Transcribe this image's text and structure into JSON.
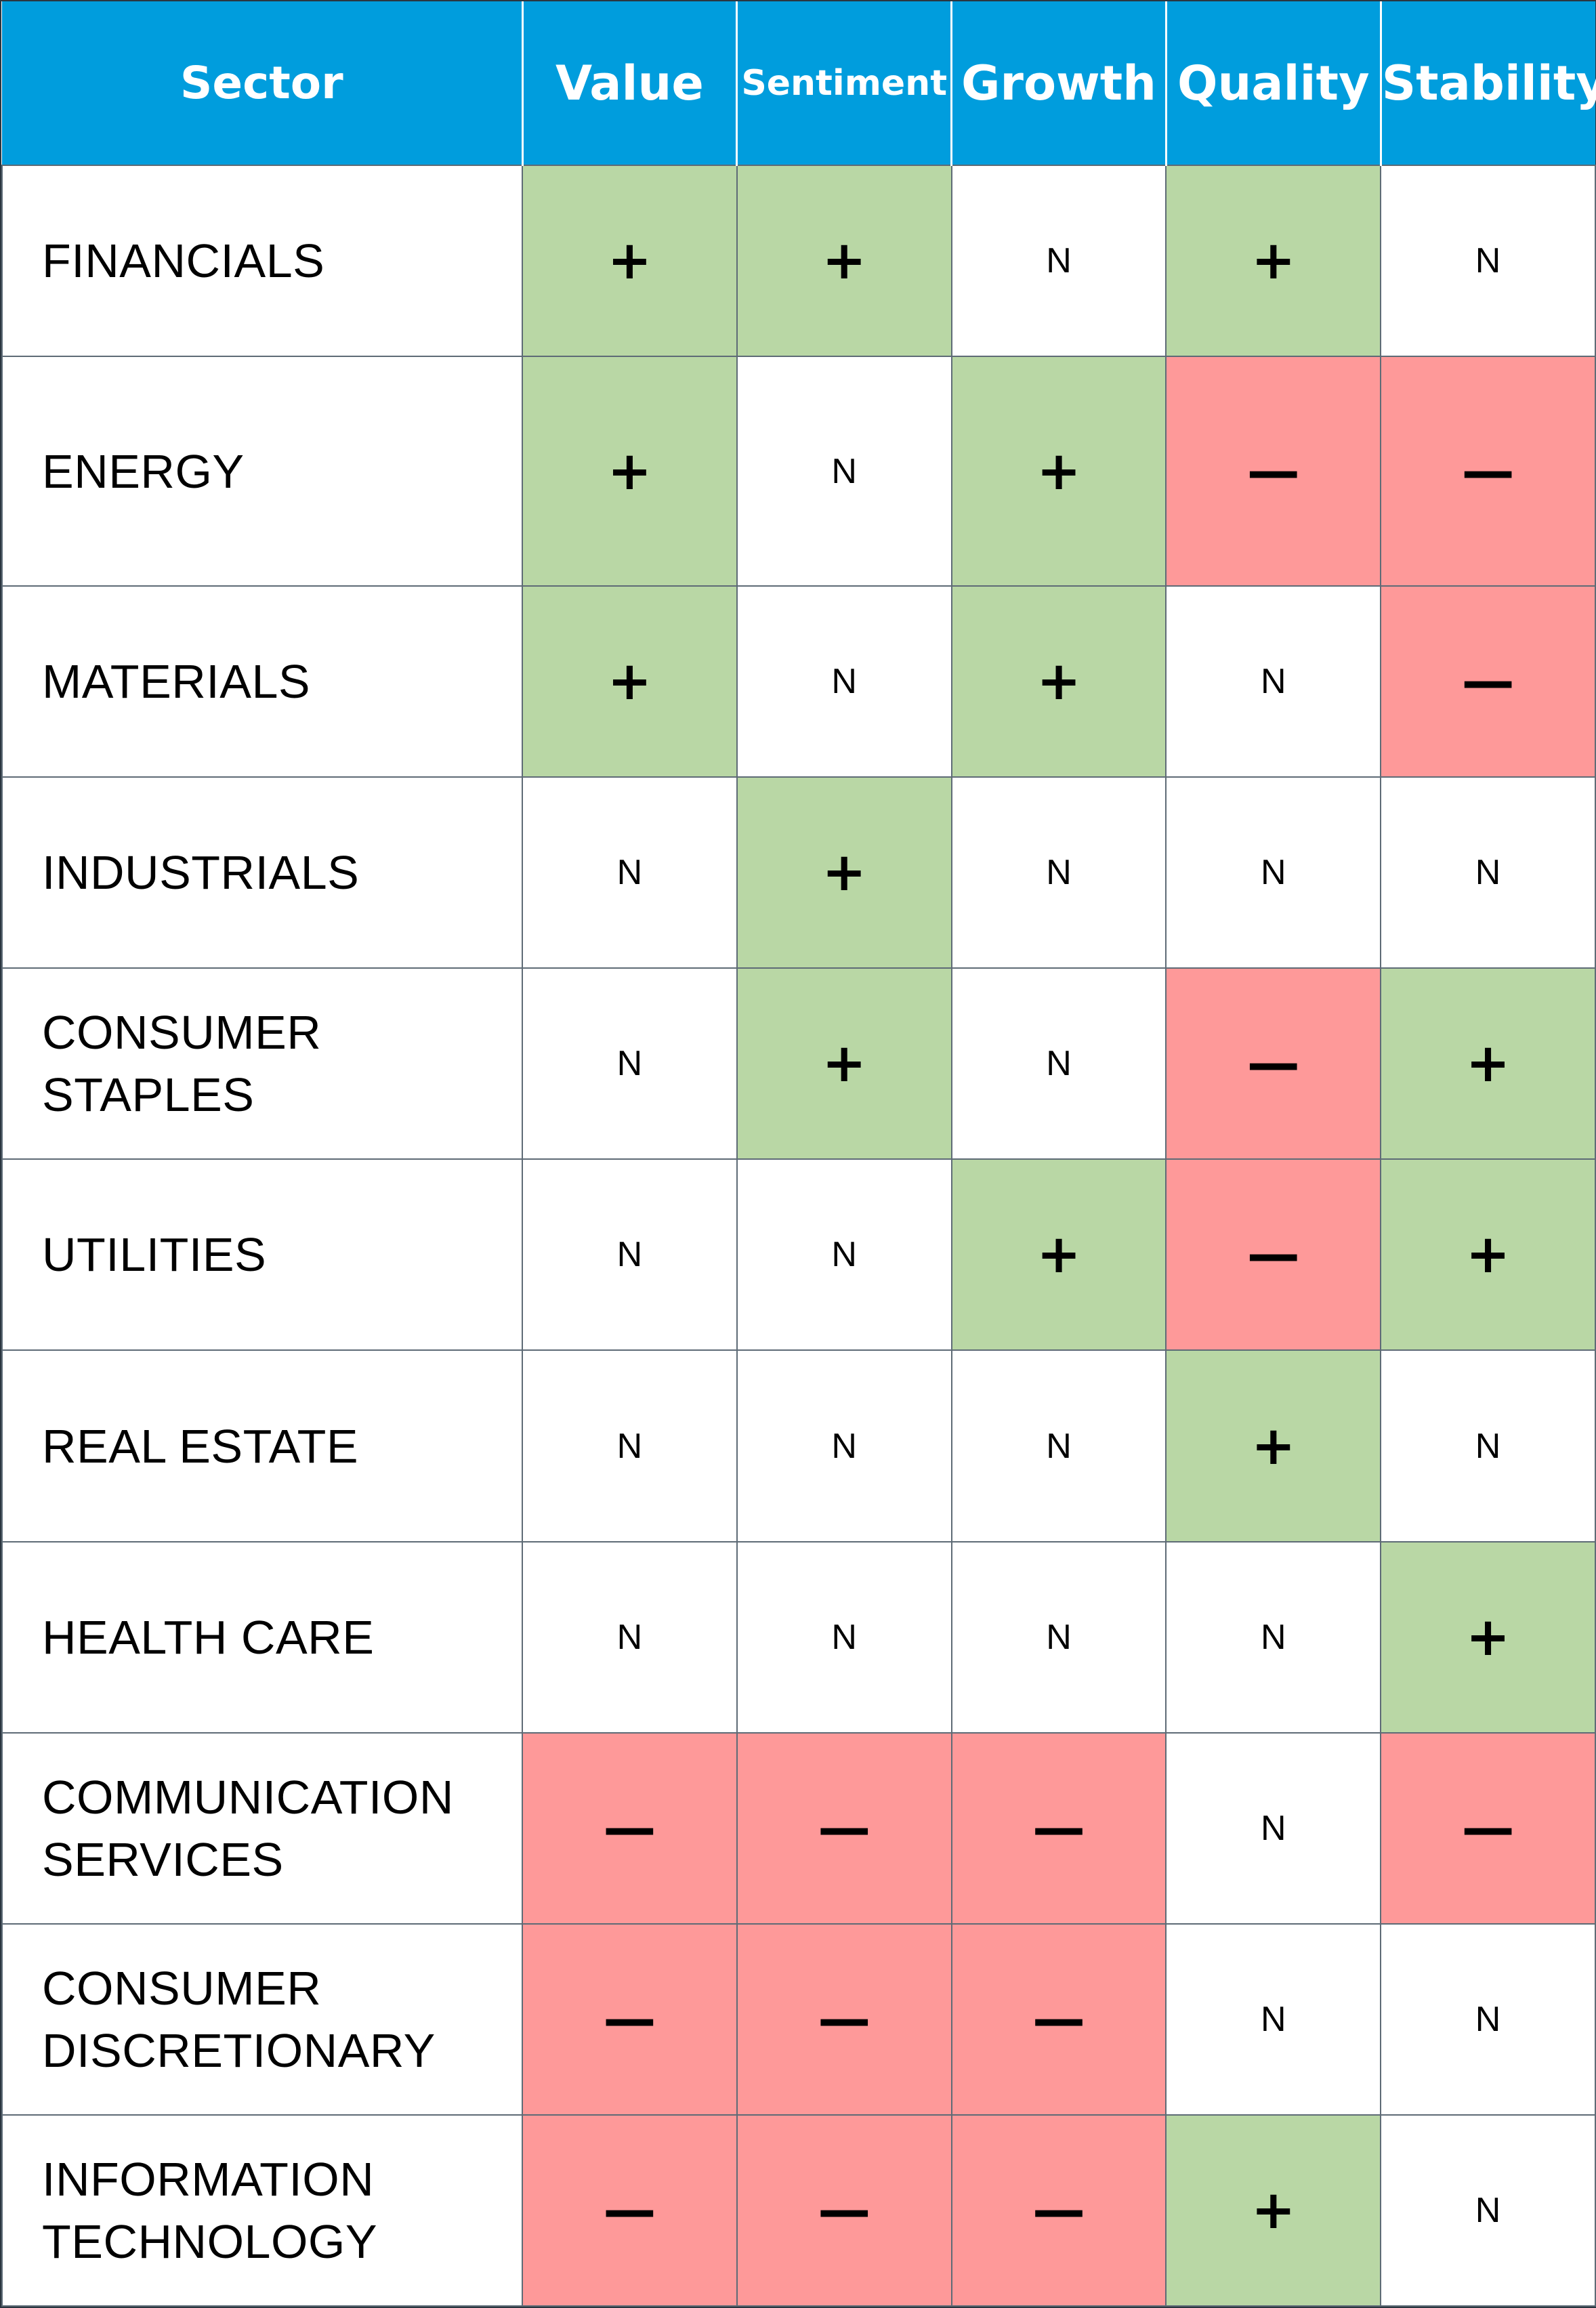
{
  "table": {
    "headers": [
      "Sector",
      "Value",
      "Sentiment",
      "Growth",
      "Quality",
      "Stability"
    ],
    "rows": [
      {
        "sector": [
          "FINANCIALS"
        ],
        "cells": [
          {
            "symbol": "+",
            "rating": "positive"
          },
          {
            "symbol": "+",
            "rating": "positive"
          },
          {
            "symbol": "N",
            "rating": "neutral"
          },
          {
            "symbol": "+",
            "rating": "positive"
          },
          {
            "symbol": "N",
            "rating": "neutral"
          }
        ]
      },
      {
        "sector": [
          "ENERGY"
        ],
        "cells": [
          {
            "symbol": "+",
            "rating": "positive"
          },
          {
            "symbol": "N",
            "rating": "neutral"
          },
          {
            "symbol": "+",
            "rating": "positive"
          },
          {
            "symbol": "—",
            "rating": "negative"
          },
          {
            "symbol": "—",
            "rating": "negative"
          }
        ]
      },
      {
        "sector": [
          "MATERIALS"
        ],
        "cells": [
          {
            "symbol": "+",
            "rating": "positive"
          },
          {
            "symbol": "N",
            "rating": "neutral"
          },
          {
            "symbol": "+",
            "rating": "positive"
          },
          {
            "symbol": "N",
            "rating": "neutral"
          },
          {
            "symbol": "—",
            "rating": "negative"
          }
        ]
      },
      {
        "sector": [
          "INDUSTRIALS"
        ],
        "cells": [
          {
            "symbol": "N",
            "rating": "neutral"
          },
          {
            "symbol": "+",
            "rating": "positive"
          },
          {
            "symbol": "N",
            "rating": "neutral"
          },
          {
            "symbol": "N",
            "rating": "neutral"
          },
          {
            "symbol": "N",
            "rating": "neutral"
          }
        ]
      },
      {
        "sector": [
          "CONSUMER",
          "STAPLES"
        ],
        "cells": [
          {
            "symbol": "N",
            "rating": "neutral"
          },
          {
            "symbol": "+",
            "rating": "positive"
          },
          {
            "symbol": "N",
            "rating": "neutral"
          },
          {
            "symbol": "—",
            "rating": "negative"
          },
          {
            "symbol": "+",
            "rating": "positive"
          }
        ]
      },
      {
        "sector": [
          "UTILITIES"
        ],
        "cells": [
          {
            "symbol": "N",
            "rating": "neutral"
          },
          {
            "symbol": "N",
            "rating": "neutral"
          },
          {
            "symbol": "+",
            "rating": "positive"
          },
          {
            "symbol": "—",
            "rating": "negative"
          },
          {
            "symbol": "+",
            "rating": "positive"
          }
        ]
      },
      {
        "sector": [
          "REAL ESTATE"
        ],
        "cells": [
          {
            "symbol": "N",
            "rating": "neutral"
          },
          {
            "symbol": "N",
            "rating": "neutral"
          },
          {
            "symbol": "N",
            "rating": "neutral"
          },
          {
            "symbol": "+",
            "rating": "positive"
          },
          {
            "symbol": "N",
            "rating": "neutral"
          }
        ]
      },
      {
        "sector": [
          "HEALTH CARE"
        ],
        "cells": [
          {
            "symbol": "N",
            "rating": "neutral"
          },
          {
            "symbol": "N",
            "rating": "neutral"
          },
          {
            "symbol": "N",
            "rating": "neutral"
          },
          {
            "symbol": "N",
            "rating": "neutral"
          },
          {
            "symbol": "+",
            "rating": "positive"
          }
        ]
      },
      {
        "sector": [
          "COMMUNICATION",
          "SERVICES"
        ],
        "cells": [
          {
            "symbol": "—",
            "rating": "negative"
          },
          {
            "symbol": "—",
            "rating": "negative"
          },
          {
            "symbol": "—",
            "rating": "negative"
          },
          {
            "symbol": "N",
            "rating": "neutral"
          },
          {
            "symbol": "—",
            "rating": "negative"
          }
        ]
      },
      {
        "sector": [
          "CONSUMER",
          "DISCRETIONARY"
        ],
        "cells": [
          {
            "symbol": "—",
            "rating": "negative"
          },
          {
            "symbol": "—",
            "rating": "negative"
          },
          {
            "symbol": "—",
            "rating": "negative"
          },
          {
            "symbol": "N",
            "rating": "neutral"
          },
          {
            "symbol": "N",
            "rating": "neutral"
          }
        ]
      },
      {
        "sector": [
          "INFORMATION",
          "TECHNOLOGY"
        ],
        "cells": [
          {
            "symbol": "—",
            "rating": "negative"
          },
          {
            "symbol": "—",
            "rating": "negative"
          },
          {
            "symbol": "—",
            "rating": "negative"
          },
          {
            "symbol": "+",
            "rating": "positive"
          },
          {
            "symbol": "N",
            "rating": "neutral"
          }
        ]
      }
    ]
  },
  "colors": {
    "header_bg": "#009ddd",
    "header_text": "#ffffff",
    "positive": "#b9d7a5",
    "negative": "#fe9999",
    "neutral": "#ffffff",
    "grid_line": "#5e6b76"
  }
}
